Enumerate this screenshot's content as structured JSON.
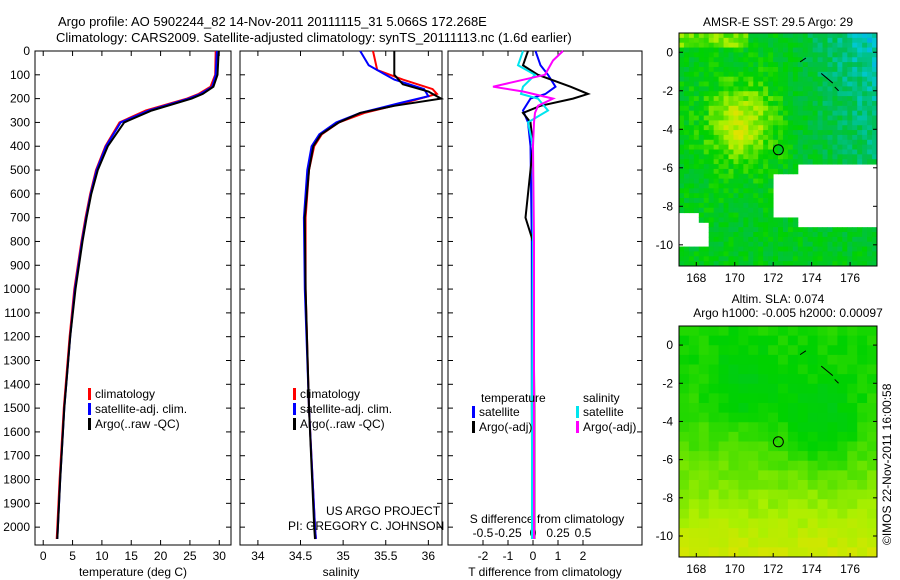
{
  "title_line1": "Argo profile: AO 5902244_82 14-Nov-2011 20111115_31 5.066S 172.268E",
  "title_line2": "Climatology: CARS2009. Satellite-adjusted climatology: synTS_20111113.nc (1.6d earlier)",
  "credit": "US ARGO PROJECT",
  "pi": "PI: GREGORY C. JOHNSON",
  "stamp": "©IMOS 22-Nov-2011 16:00:58",
  "colors": {
    "clim": "#ff0000",
    "sat": "#0000ff",
    "argo": "#000000",
    "ssat": "#00e5ee",
    "sargo": "#ff00ff"
  },
  "chart_data": [
    {
      "type": "line",
      "id": "temp",
      "xlabel": "temperature (deg C)",
      "xlim": [
        -1.4,
        32
      ],
      "ylim": [
        0,
        2075
      ],
      "xticks": [
        0,
        5,
        10,
        15,
        20,
        25,
        30
      ],
      "yticks": [
        0,
        100,
        200,
        300,
        400,
        500,
        600,
        700,
        800,
        900,
        1000,
        1100,
        1200,
        1300,
        1400,
        1500,
        1600,
        1700,
        1800,
        1900,
        2000
      ],
      "legend": [
        "climatology",
        "satellite-adj. clim.",
        "Argo(..raw -QC)"
      ],
      "series": [
        {
          "name": "climatology",
          "color": "clim",
          "depth": [
            0,
            100,
            150,
            180,
            200,
            250,
            300,
            400,
            500,
            600,
            700,
            800,
            1000,
            1200,
            1500,
            1800,
            2000,
            2050
          ],
          "values": [
            29.4,
            29.3,
            28.5,
            26.5,
            24.5,
            17.5,
            13,
            10.6,
            9,
            8,
            7.2,
            6.5,
            5.3,
            4.5,
            3.5,
            2.8,
            2.4,
            2.3
          ]
        },
        {
          "name": "satellite-adj. clim.",
          "color": "sat",
          "depth": [
            0,
            100,
            150,
            180,
            200,
            250,
            300,
            400,
            500,
            600,
            700,
            800,
            1000,
            1200,
            1500,
            1800,
            2000,
            2050
          ],
          "values": [
            29.6,
            29.4,
            28.8,
            26.8,
            24.8,
            18,
            13.2,
            10.7,
            9.1,
            8.1,
            7.3,
            6.6,
            5.4,
            4.6,
            3.6,
            2.9,
            2.5,
            2.4
          ]
        },
        {
          "name": "Argo(..raw -QC)",
          "color": "argo",
          "depth": [
            0,
            100,
            150,
            180,
            200,
            250,
            300,
            400,
            500,
            600,
            700,
            800,
            1000,
            1200,
            1500,
            1800,
            2000,
            2050
          ],
          "values": [
            29.9,
            29.7,
            29,
            27.2,
            25.3,
            18.5,
            13.8,
            11,
            9.3,
            8.2,
            7.4,
            6.7,
            5.5,
            4.6,
            3.6,
            2.9,
            2.5,
            2.4
          ]
        }
      ]
    },
    {
      "type": "line",
      "id": "sal",
      "xlabel": "salinity",
      "xlim": [
        33.79,
        36.16
      ],
      "ylim": [
        0,
        2075
      ],
      "xticks": [
        34,
        34.5,
        35,
        35.5,
        36
      ],
      "legend": [
        "climatology",
        "satellite-adj. clim.",
        "Argo(..raw -QC)"
      ],
      "series": [
        {
          "name": "climatology",
          "color": "clim",
          "depth": [
            0,
            80,
            120,
            160,
            180,
            220,
            260,
            300,
            350,
            400,
            500,
            700,
            1000,
            1500,
            2000,
            2050
          ],
          "values": [
            35.35,
            35.4,
            35.7,
            36.05,
            36.1,
            35.7,
            35.25,
            34.95,
            34.75,
            34.66,
            34.6,
            34.56,
            34.56,
            34.6,
            34.67,
            34.68
          ]
        },
        {
          "name": "satellite-adj. clim.",
          "color": "sat",
          "depth": [
            0,
            60,
            120,
            160,
            190,
            220,
            260,
            300,
            350,
            400,
            500,
            700,
            1000,
            1500,
            2000,
            2050
          ],
          "values": [
            35.2,
            35.3,
            35.6,
            35.95,
            36.0,
            35.65,
            35.2,
            34.92,
            34.72,
            34.63,
            34.58,
            34.54,
            34.55,
            34.6,
            34.67,
            34.68
          ]
        },
        {
          "name": "Argo(..raw -QC)",
          "color": "argo",
          "depth": [
            0,
            100,
            140,
            170,
            200,
            230,
            260,
            300,
            350,
            400,
            500,
            700,
            1000,
            1500,
            2000,
            2050
          ],
          "values": [
            35.6,
            35.6,
            35.7,
            36.0,
            36.15,
            35.6,
            35.2,
            34.95,
            34.74,
            34.65,
            34.6,
            34.55,
            34.56,
            34.6,
            34.66,
            34.67
          ]
        }
      ]
    },
    {
      "type": "line",
      "id": "diff",
      "xlabel": "T difference from climatology",
      "x2label": "S difference from climatology",
      "xlim": [
        -3.4,
        4.36
      ],
      "ylim": [
        0,
        2075
      ],
      "xticks": [
        -2,
        -1,
        0,
        1,
        2
      ],
      "x2ticks": [
        -0.5,
        -0.25,
        0,
        0.25,
        0.5
      ],
      "legend_headers": [
        "temperature",
        "salinity"
      ],
      "legend": [
        "satellite",
        "Argo(-adj)",
        "satellite",
        "Argo(-adj)"
      ],
      "series": [
        {
          "name": "T satellite",
          "color": "sat",
          "depth": [
            0,
            60,
            100,
            150,
            180,
            200,
            250,
            300,
            400,
            800,
            1500,
            2050
          ],
          "values": [
            0.1,
            0.3,
            0.6,
            0.9,
            0.5,
            -0.1,
            -0.4,
            -0.2,
            -0.1,
            -0.05,
            -0.05,
            -0.02
          ]
        },
        {
          "name": "T Argo(-adj)",
          "color": "argo",
          "depth": [
            0,
            60,
            100,
            150,
            180,
            200,
            230,
            260,
            300,
            400,
            700,
            800,
            1500,
            2050
          ],
          "values": [
            -0.2,
            -0.4,
            0.2,
            1.5,
            2.2,
            1.6,
            0.3,
            -0.4,
            -0.1,
            0,
            -0.3,
            0,
            0.05,
            0.05
          ]
        },
        {
          "name": "S satellite",
          "color": "ssat",
          "depth": [
            0,
            60,
            100,
            150,
            180,
            200,
            250,
            300,
            400,
            800,
            1500,
            2050
          ],
          "values": [
            -0.1,
            -0.15,
            0.02,
            -0.1,
            -0.12,
            0.05,
            0.15,
            -0.05,
            0,
            0,
            -0.01,
            -0.01
          ]
        },
        {
          "name": "S Argo(-adj)",
          "color": "sargo",
          "depth": [
            0,
            40,
            100,
            150,
            170,
            200,
            230,
            260,
            300,
            400,
            800,
            1500,
            2050
          ],
          "values": [
            0.3,
            0.2,
            0.12,
            -0.4,
            -0.1,
            0.2,
            0.05,
            0.02,
            0.01,
            0,
            0.01,
            0.01,
            0.01
          ]
        }
      ]
    },
    {
      "type": "heatmap",
      "id": "sst",
      "title": "AMSR-E SST: 29.5 Argo: 29",
      "xticks": [
        168,
        170,
        172,
        174,
        176
      ],
      "yticks": [
        0,
        -2,
        -4,
        -6,
        -8,
        -10
      ],
      "xlim": [
        167.1,
        177.4
      ],
      "ylim": [
        -11.1,
        1
      ],
      "marker": [
        172.268,
        -5.066
      ]
    },
    {
      "type": "heatmap",
      "id": "sla",
      "title": "Altim. SLA: 0.074",
      "subtitle": "Argo h1000: -0.005 h2000: 0.00097",
      "xticks": [
        168,
        170,
        172,
        174,
        176
      ],
      "yticks": [
        0,
        -2,
        -4,
        -6,
        -8,
        -10
      ],
      "xlim": [
        167.1,
        177.4
      ],
      "ylim": [
        -11.1,
        1
      ],
      "marker": [
        172.268,
        -5.066
      ]
    }
  ]
}
